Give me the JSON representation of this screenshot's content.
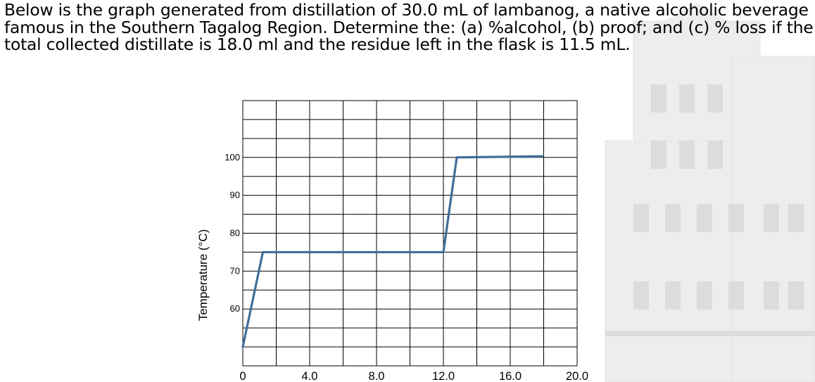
{
  "question": {
    "text": "Below is the graph generated from distillation of 30.0 mL of lambanog, a native alcoholic beverage famous in the Southern Tagalog Region.  Determine the: (a) %alcohol, (b) proof; and (c) % loss if the total collected distillate is 18.0 ml and the residue left in the flask is 11.5 mL."
  },
  "chart_data": {
    "type": "line",
    "title": "",
    "xlabel": "",
    "ylabel": "Temperature (°C)",
    "xlim": [
      0,
      20
    ],
    "ylim": [
      45,
      115
    ],
    "grid": true,
    "x_ticks": [
      "0",
      "4.0",
      "8.0",
      "12.0",
      "16.0",
      "20.0"
    ],
    "y_ticks": [
      "60",
      "70",
      "80",
      "90",
      "100"
    ],
    "series": [
      {
        "x": [
          0,
          1.2,
          12.0,
          12.8,
          17.9
        ],
        "y": [
          50,
          75,
          75,
          100,
          100.3
        ]
      }
    ],
    "line_color": "#3f6e9a"
  }
}
